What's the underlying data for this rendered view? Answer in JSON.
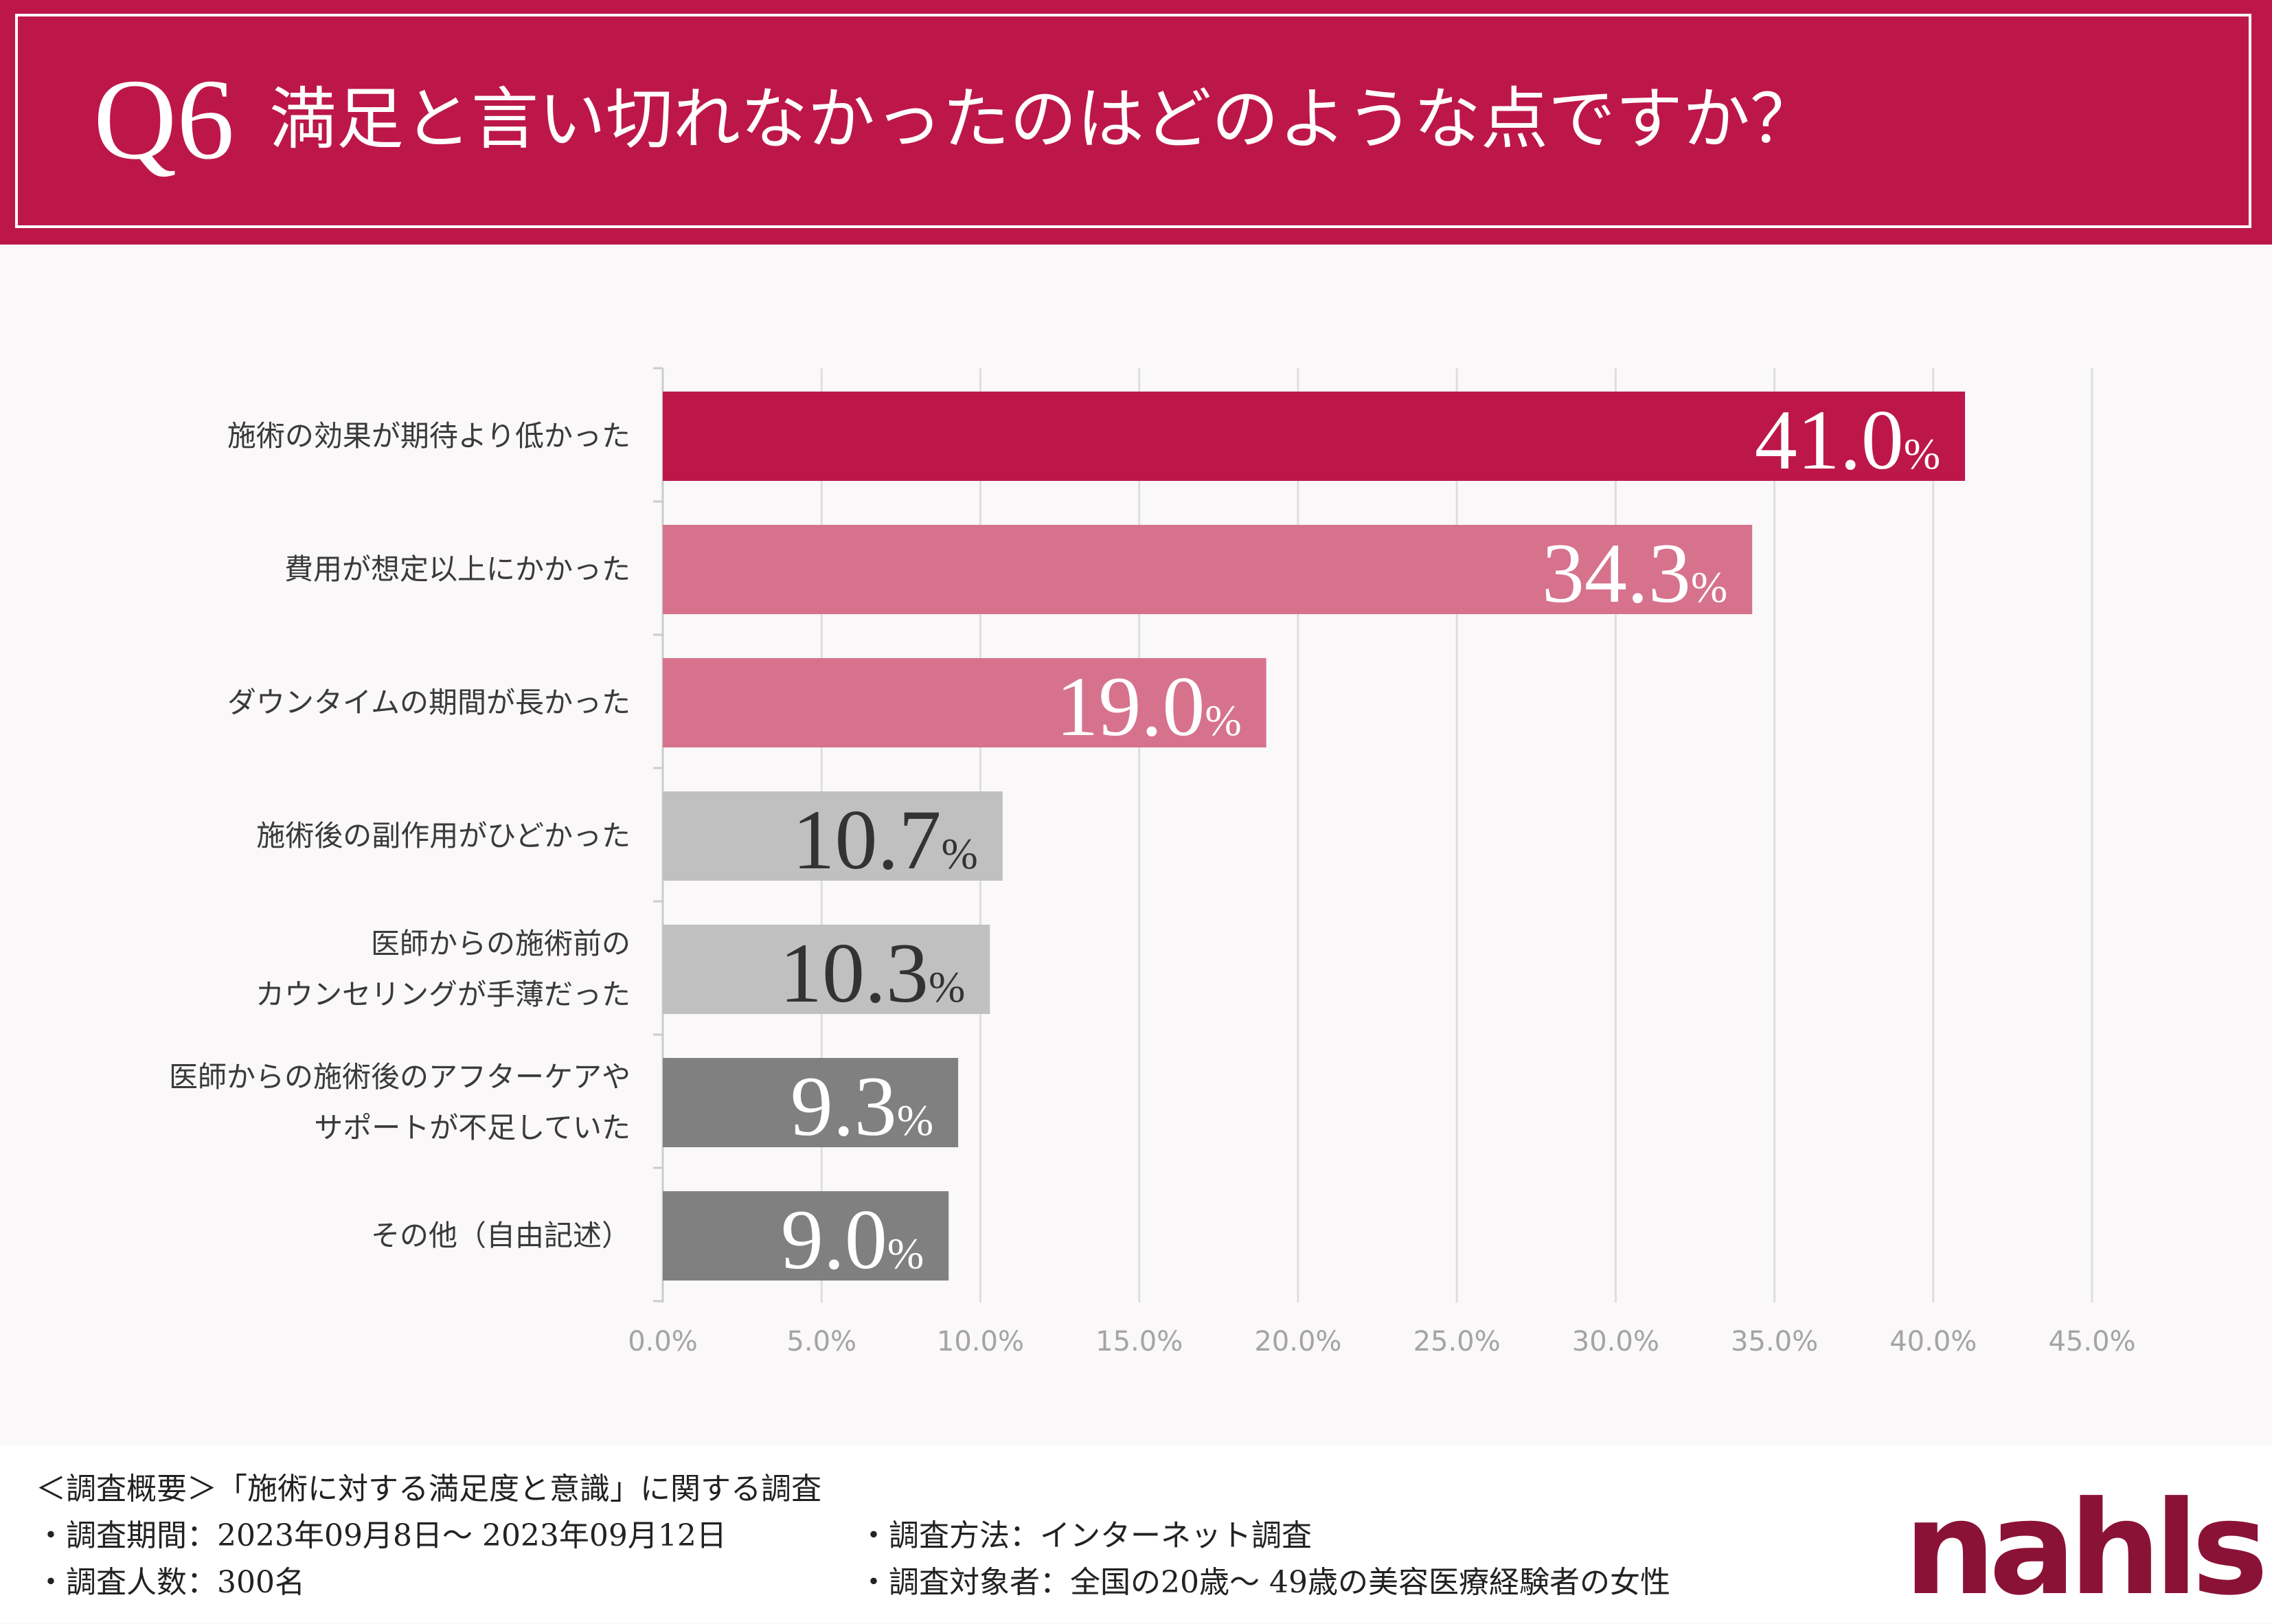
{
  "header": {
    "question_number": "Q6",
    "question_text": "満足と言い切れなかったのはどのような点ですか？"
  },
  "colors": {
    "header_bg": "#bd174a",
    "top_bar": "#bd174a",
    "pink_bar": "#d7728d",
    "light_gray_bar": "#c0c0c0",
    "dark_gray_bar": "#808080",
    "logo": "#8b1237"
  },
  "chart_data": {
    "type": "bar",
    "orientation": "horizontal",
    "title": "満足と言い切れなかったのはどのような点ですか？",
    "categories": [
      [
        "施術の効果が期待より低かった"
      ],
      [
        "費用が想定以上にかかった"
      ],
      [
        "ダウンタイムの期間が長かった"
      ],
      [
        "施術後の副作用がひどかった"
      ],
      [
        "医師からの施術前の",
        "カウンセリングが手薄だった"
      ],
      [
        "医師からの施術後のアフターケアや",
        "サポートが不足していた"
      ],
      [
        "その他（自由記述）"
      ]
    ],
    "values": [
      41.0,
      34.3,
      19.0,
      10.7,
      10.3,
      9.3,
      9.0
    ],
    "value_labels": [
      "41.0",
      "34.3",
      "19.0",
      "10.7",
      "10.3",
      "9.3",
      "9.0"
    ],
    "value_unit": "%",
    "bar_colors": [
      "#bd174a",
      "#d7728d",
      "#d7728d",
      "#c0c0c0",
      "#c0c0c0",
      "#808080",
      "#808080"
    ],
    "label_colors": [
      "#ffffff",
      "#ffffff",
      "#ffffff",
      "#333333",
      "#333333",
      "#ffffff",
      "#ffffff"
    ],
    "xlim": [
      0,
      45
    ],
    "xticks": [
      0,
      5,
      10,
      15,
      20,
      25,
      30,
      35,
      40,
      45
    ],
    "xtick_labels": [
      "0.0%",
      "5.0%",
      "10.0%",
      "15.0%",
      "20.0%",
      "25.0%",
      "30.0%",
      "35.0%",
      "40.0%",
      "45.0%"
    ],
    "grid": true,
    "xlabel": "",
    "ylabel": ""
  },
  "footer": {
    "survey_title": "＜調査概要＞「施術に対する満足度と意識」に関する調査",
    "period": "・調査期間：2023年09月8日～ 2023年09月12日",
    "count": "・調査人数：300名",
    "method": "・調査方法：インターネット調査",
    "target": "・調査対象者：全国の20歳～ 49歳の美容医療経験者の女性"
  },
  "logo_text": "nahls"
}
